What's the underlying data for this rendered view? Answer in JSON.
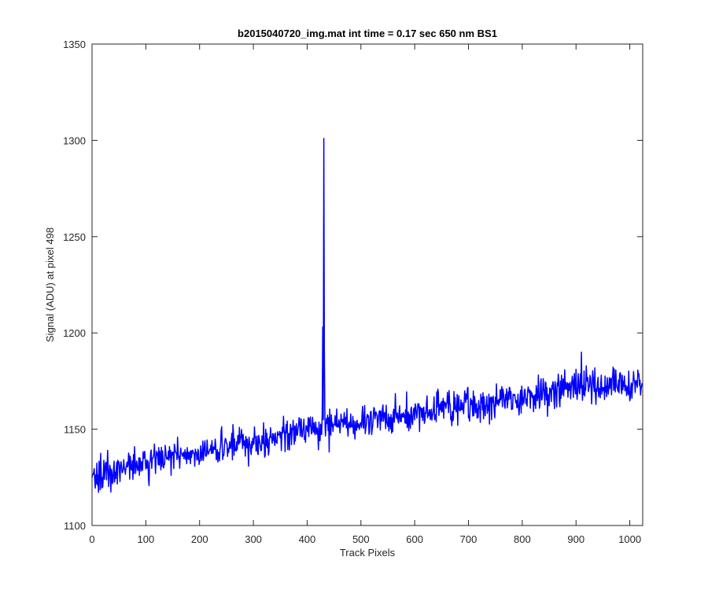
{
  "chart_data": {
    "type": "line",
    "title": "b2015040720_img.mat int time = 0.17 sec  650 nm BS1",
    "xlabel": "Track Pixels",
    "ylabel": "Signal (ADU) at pixel 498",
    "xlim": [
      0,
      1024
    ],
    "ylim": [
      1100,
      1350
    ],
    "xticks": [
      0,
      100,
      200,
      300,
      400,
      500,
      600,
      700,
      800,
      900,
      1000
    ],
    "yticks": [
      1100,
      1150,
      1200,
      1250,
      1300,
      1350
    ],
    "grid": false,
    "line_color": "#0000ff",
    "series": [
      {
        "n_points": 1024,
        "trend": [
          [
            0,
            1125
          ],
          [
            100,
            1133
          ],
          [
            200,
            1138
          ],
          [
            300,
            1143
          ],
          [
            400,
            1150
          ],
          [
            500,
            1154
          ],
          [
            600,
            1158
          ],
          [
            700,
            1163
          ],
          [
            800,
            1167
          ],
          [
            900,
            1172
          ],
          [
            1024,
            1173
          ]
        ],
        "noise_amplitude": 5,
        "spikes": [
          [
            429,
            1203
          ],
          [
            430,
            1155
          ],
          [
            431,
            1301
          ],
          [
            432,
            1190
          ],
          [
            910,
            1190
          ],
          [
            914,
            1168
          ]
        ]
      }
    ]
  }
}
